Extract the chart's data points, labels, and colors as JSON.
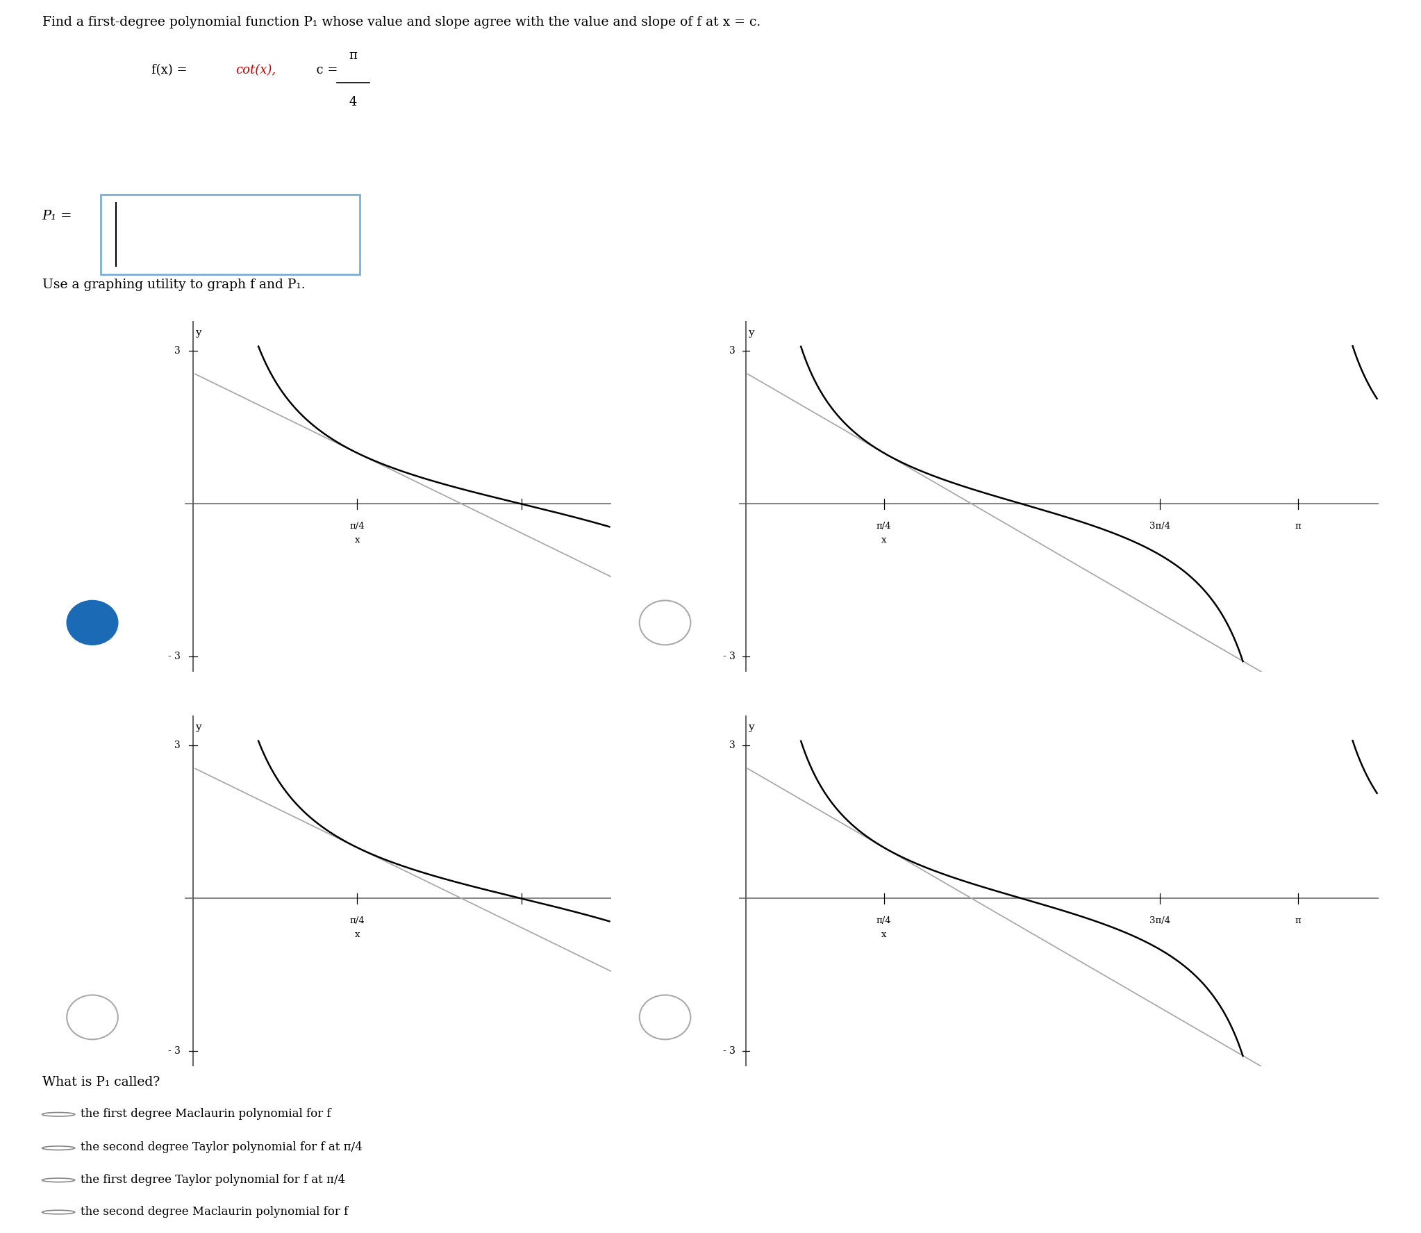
{
  "title_text": "Find a first-degree polynomial function P₁ whose value and slope agree with the value and slope of f at x = c.",
  "fx_prefix": "f(x) = ",
  "fx_cot": "cot(x),",
  "fx_suffix": "  c = ",
  "pi_num": "π",
  "pi_den": "4",
  "p1_prefix": "P₁ =",
  "use_label": "Use a graphing utility to graph f and P₁.",
  "what_label": "What is P₁ called?",
  "radio_options": [
    "the first degree Maclaurin polynomial for f",
    "the second degree Taylor polynomial for f at π/4",
    "the first degree Taylor polynomial for f at π/4",
    "the second degree Maclaurin polynomial for f"
  ],
  "bg_color": "#ffffff",
  "text_color": "#000000",
  "cot_color": "#000000",
  "tangent_color": "#aaaaaa",
  "axis_color": "#888888",
  "yaxis_color": "#555555",
  "selected_color": "#1a6ab5",
  "unselected_color": "#ffffff",
  "unselected_edge": "#aaaaaa",
  "input_border": "#7bafd4",
  "fx_cot_color": "#cc0000",
  "graph_configs": [
    {
      "xmin": 0.01,
      "xmax": 2.0,
      "asymptotes": [
        0.0
      ],
      "x_ticks": [
        0.7853981633974483,
        1.5707963267948966
      ],
      "x_tick_labels": [
        "π/4",
        ""
      ],
      "x_tick_below": [
        "x",
        ""
      ],
      "ymin": -3,
      "ymax": 3,
      "selected": true,
      "left_graphs": true
    },
    {
      "xmin": 0.01,
      "xmax": 3.6,
      "asymptotes": [
        0.0,
        3.141592653589793
      ],
      "x_ticks": [
        0.7853981633974483,
        2.356194490192345,
        3.141592653589793
      ],
      "x_tick_labels": [
        "π/4",
        "3π/4",
        "π"
      ],
      "x_tick_below": [
        "x",
        "",
        ""
      ],
      "ymin": -3,
      "ymax": 3,
      "selected": false,
      "left_graphs": false
    },
    {
      "xmin": 0.01,
      "xmax": 2.0,
      "asymptotes": [
        0.0
      ],
      "x_ticks": [
        0.7853981633974483,
        1.5707963267948966
      ],
      "x_tick_labels": [
        "π/4",
        ""
      ],
      "x_tick_below": [
        "x",
        ""
      ],
      "ymin": -3,
      "ymax": 3,
      "selected": false,
      "left_graphs": true
    },
    {
      "xmin": 0.01,
      "xmax": 3.6,
      "asymptotes": [
        0.0,
        3.141592653589793
      ],
      "x_ticks": [
        0.7853981633974483,
        2.356194490192345,
        3.141592653589793
      ],
      "x_tick_labels": [
        "π/4",
        "3π/4",
        "π"
      ],
      "x_tick_below": [
        "x",
        "",
        ""
      ],
      "ymin": -3,
      "ymax": 3,
      "selected": false,
      "left_graphs": false
    }
  ]
}
